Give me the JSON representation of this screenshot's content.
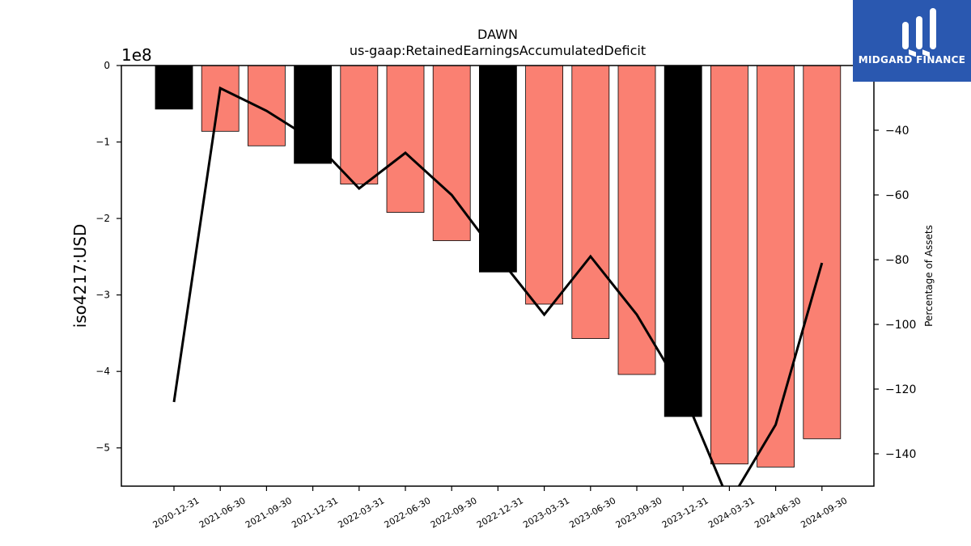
{
  "chart_data": {
    "type": "bar",
    "title": "DAWN",
    "subtitle": "us-gaap:RetainedEarningsAccumulatedDeficit",
    "ylabel": "iso4217:USD",
    "y2label": "Percentage of Assets",
    "y_scale_label": "1e8",
    "categories": [
      "2020-12-31",
      "2021-06-30",
      "2021-09-30",
      "2021-12-31",
      "2022-03-31",
      "2022-06-30",
      "2022-09-30",
      "2022-12-31",
      "2023-03-31",
      "2023-06-30",
      "2023-09-30",
      "2023-12-31",
      "2024-03-31",
      "2024-06-30",
      "2024-09-30"
    ],
    "series": [
      {
        "type": "bar",
        "values": [
          -0.57,
          -0.86,
          -1.05,
          -1.28,
          -1.55,
          -1.92,
          -2.29,
          -2.7,
          -3.12,
          -3.57,
          -4.04,
          -4.59,
          -5.21,
          -5.25,
          -4.88
        ],
        "colors": [
          "#000000",
          "#fa8072",
          "#fa8072",
          "#000000",
          "#fa8072",
          "#fa8072",
          "#fa8072",
          "#000000",
          "#fa8072",
          "#fa8072",
          "#fa8072",
          "#000000",
          "#fa8072",
          "#fa8072",
          "#fa8072"
        ]
      },
      {
        "type": "line",
        "axis": "right",
        "values": [
          -124,
          -27,
          -34,
          -43,
          -58,
          -47,
          -60,
          -79,
          -97,
          -79,
          -97,
          -121,
          -155,
          -131,
          -81
        ],
        "color": "#000000"
      }
    ],
    "ylim": [
      -5.5,
      0
    ],
    "yticks": [
      0,
      -1,
      -2,
      -3,
      -4,
      -5
    ],
    "y2lim": [
      -150,
      -20
    ],
    "y2ticks": [
      -40,
      -60,
      -80,
      -100,
      -120,
      -140
    ]
  },
  "logo": {
    "text": "MIDGARD FINANCE",
    "color": "#2a58b0"
  }
}
